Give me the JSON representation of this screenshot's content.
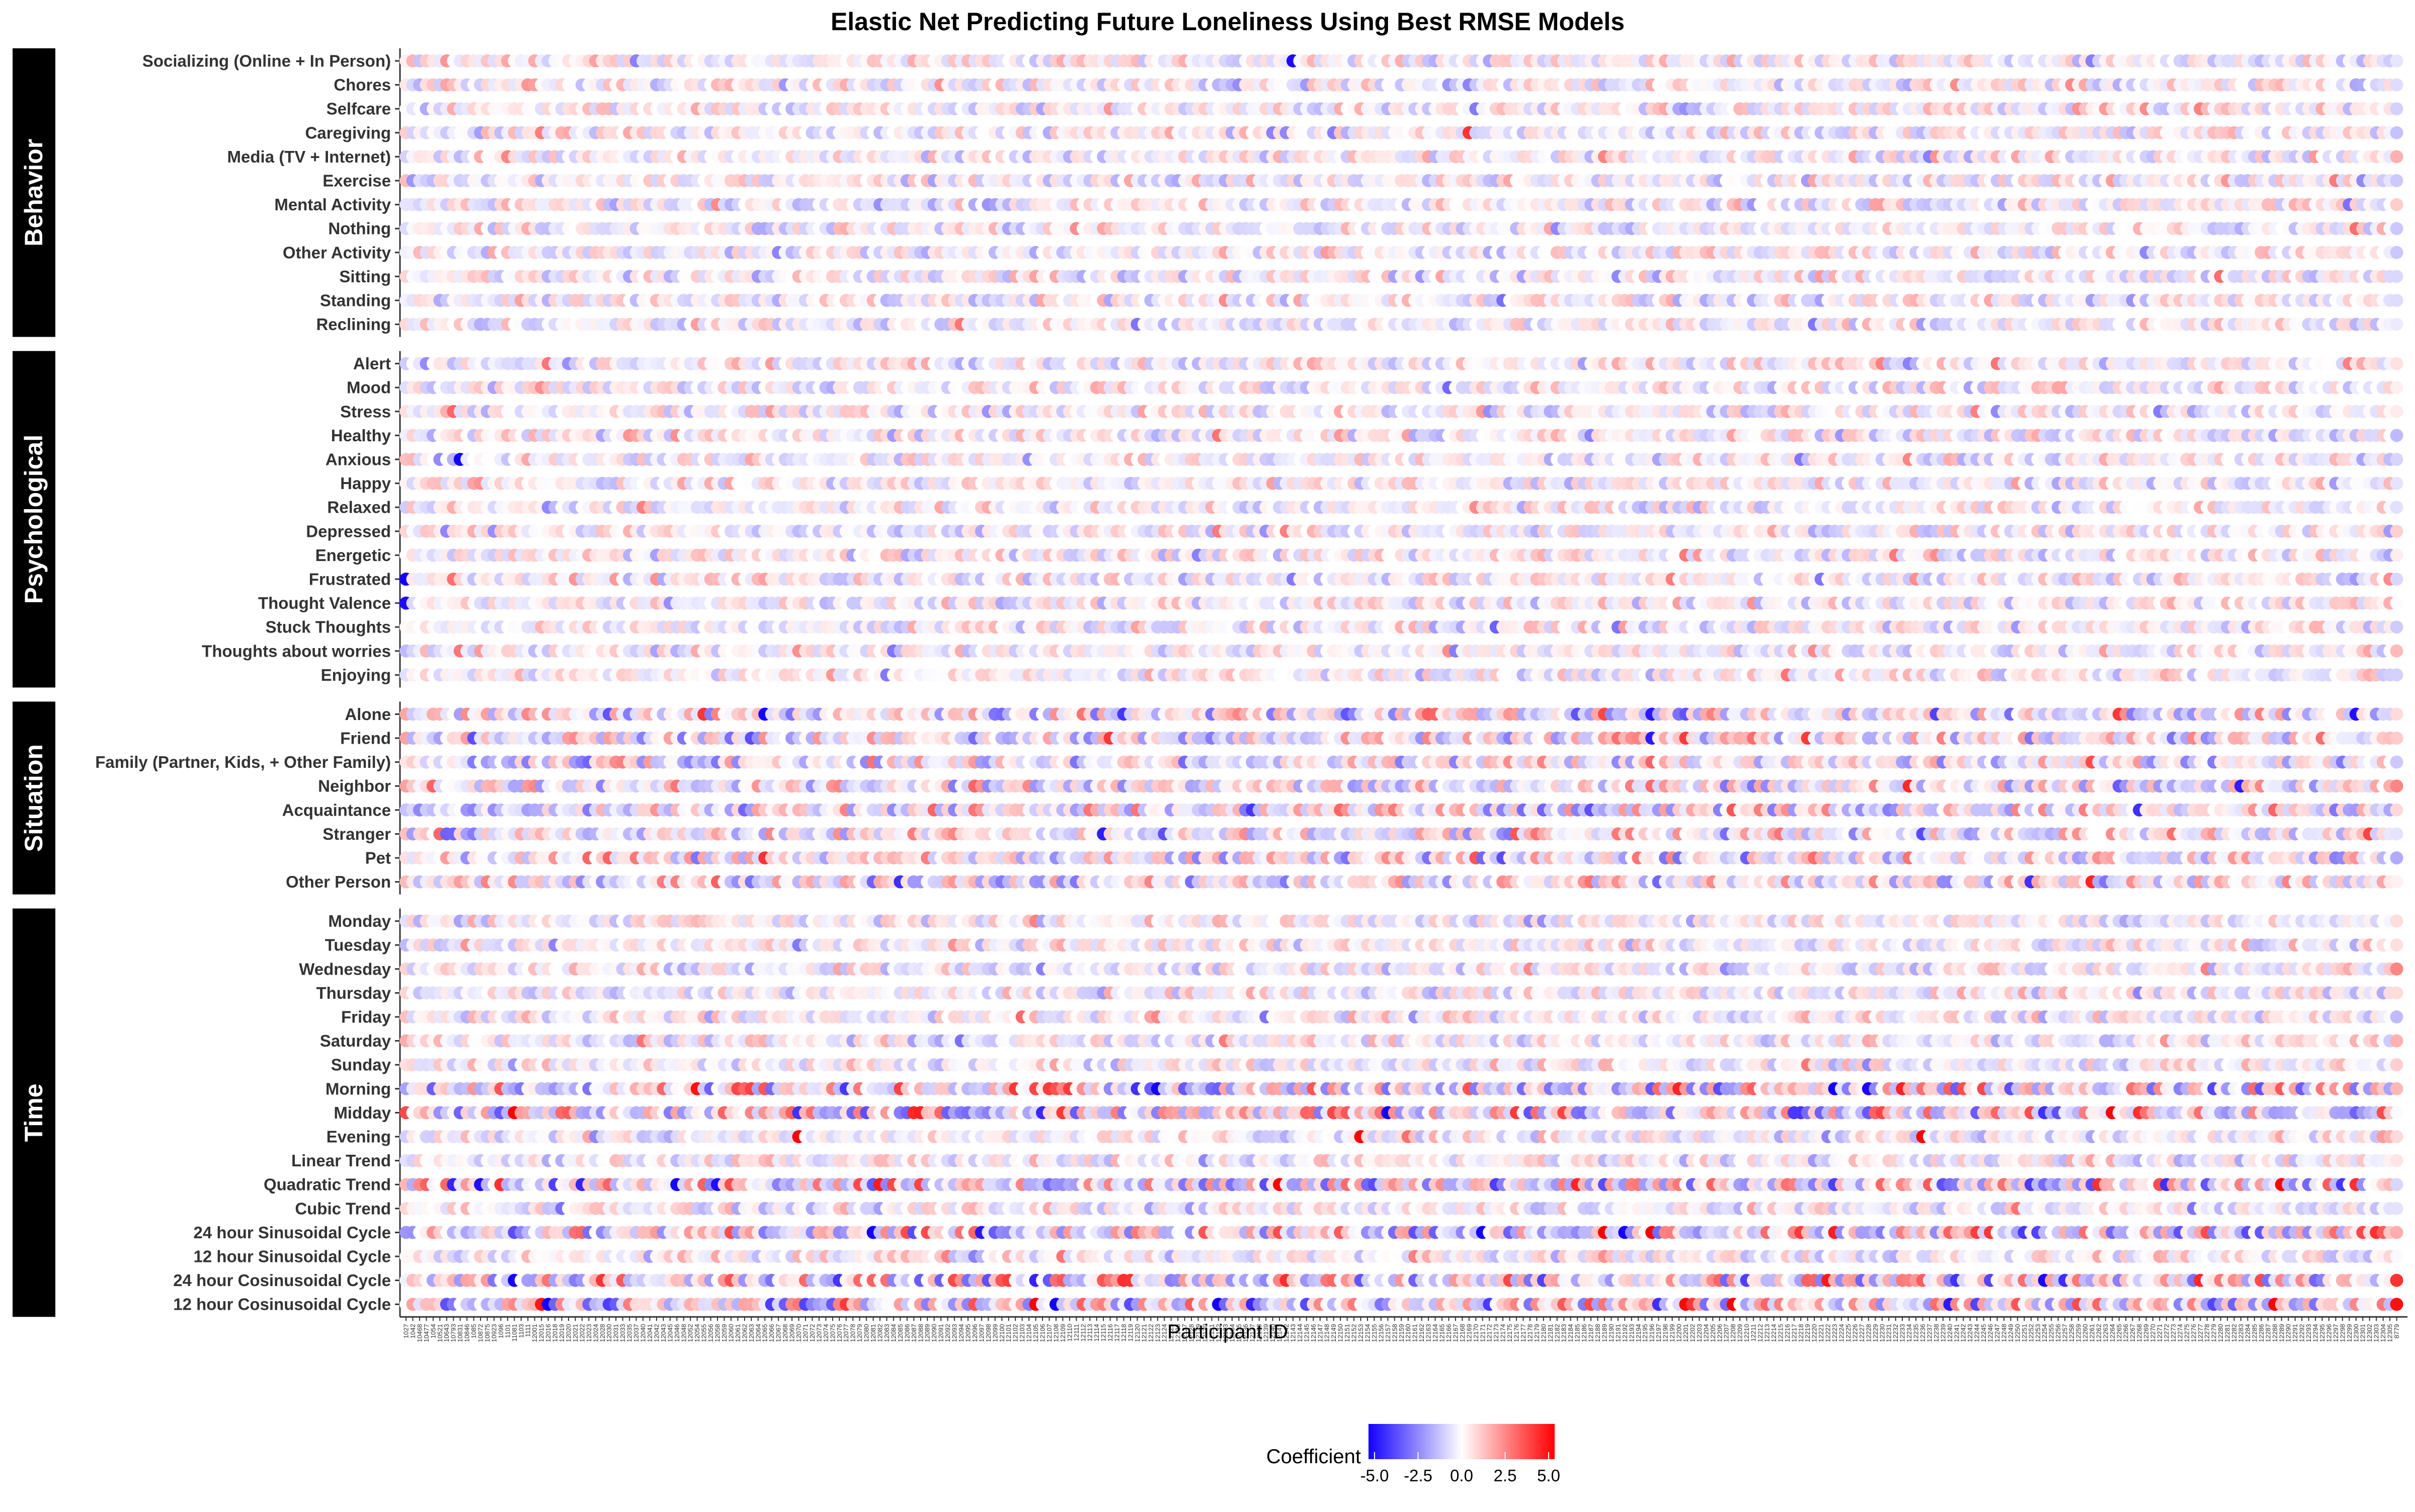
{
  "chart_data": {
    "type": "heatmap",
    "title": "Elastic Net Predicting Future Loneliness Using Best RMSE Models",
    "xlabel": "Participant ID",
    "ylabel": "",
    "panels": [
      {
        "name": "Behavior",
        "rows": [
          "Socializing (Online + In Person)",
          "Chores",
          "Selfcare",
          "Caregiving",
          "Media (TV + Internet)",
          "Exercise",
          "Mental Activity",
          "Nothing",
          "Other Activity",
          "Sitting",
          "Standing",
          "Reclining"
        ]
      },
      {
        "name": "Psychological",
        "rows": [
          "Alert",
          "Mood",
          "Stress",
          "Healthy",
          "Anxious",
          "Happy",
          "Relaxed",
          "Depressed",
          "Energetic",
          "Frustrated",
          "Thought Valence",
          "Stuck Thoughts",
          "Thoughts about worries",
          "Enjoying"
        ]
      },
      {
        "name": "Situation",
        "rows": [
          "Alone",
          "Friend",
          "Family (Partner, Kids, + Other Family)",
          "Neighbor",
          "Acquaintance",
          "Stranger",
          "Pet",
          "Other Person"
        ]
      },
      {
        "name": "Time",
        "rows": [
          "Monday",
          "Tuesday",
          "Wednesday",
          "Thursday",
          "Friday",
          "Saturday",
          "Sunday",
          "Morning",
          "Midday",
          "Evening",
          "Linear Trend",
          "Quadratic Trend",
          "Cubic Trend",
          "24 hour Sinusoidal Cycle",
          "12 hour Sinusoidal Cycle",
          "24 hour Cosinusoidal Cycle",
          "12 hour Cosinusoidal Cycle"
        ]
      }
    ],
    "participants": [
      "1027",
      "1042",
      "10468",
      "10477",
      "1054",
      "10521",
      "10643",
      "10793",
      "10831",
      "10846",
      "1085",
      "10872",
      "10875",
      "10923",
      "1096",
      "1101",
      "11081",
      "1103",
      "1111",
      "12001",
      "12015",
      "12016",
      "12018",
      "12019",
      "12020",
      "12021",
      "12022",
      "12023",
      "12024",
      "12028",
      "12030",
      "12031",
      "12033",
      "12035",
      "12037",
      "12040",
      "12041",
      "12042",
      "12043",
      "12045",
      "12046",
      "12048",
      "12052",
      "12054",
      "12055",
      "12056",
      "12058",
      "12059",
      "12060",
      "12061",
      "12062",
      "12063",
      "12064",
      "12065",
      "12066",
      "12067",
      "12068",
      "12069",
      "12070",
      "12071",
      "12072",
      "12073",
      "12074",
      "12075",
      "12076",
      "12077",
      "12078",
      "12079",
      "12080",
      "12081",
      "12082",
      "12083",
      "12084",
      "12085",
      "12086",
      "12087",
      "12088",
      "12089",
      "12090",
      "12091",
      "12092",
      "12093",
      "12094",
      "12095",
      "12096",
      "12097",
      "12098",
      "12099",
      "12100",
      "12101",
      "12102",
      "12103",
      "12104",
      "12105",
      "12106",
      "12107",
      "12108",
      "12109",
      "12110",
      "12111",
      "12112",
      "12113",
      "12114",
      "12115",
      "12116",
      "12117",
      "12118",
      "12119",
      "12120",
      "12121",
      "12122",
      "12123",
      "12124",
      "12125",
      "12126",
      "12127",
      "12128",
      "12129",
      "12130",
      "12131",
      "12132",
      "12133",
      "12134",
      "12135",
      "12136",
      "12137",
      "12138",
      "12139",
      "12140",
      "12141",
      "12142",
      "12143",
      "12144",
      "12145",
      "12146",
      "12147",
      "12148",
      "12149",
      "12150",
      "12151",
      "12152",
      "12153",
      "12154",
      "12155",
      "12156",
      "12157",
      "12158",
      "12159",
      "12160",
      "12161",
      "12162",
      "12163",
      "12164",
      "12165",
      "12166",
      "12167",
      "12168",
      "12169",
      "12170",
      "12171",
      "12172",
      "12173",
      "12174",
      "12175",
      "12176",
      "12177",
      "12178",
      "12179",
      "12180",
      "12181",
      "12182",
      "12183",
      "12184",
      "12185",
      "12186",
      "12187",
      "12188",
      "12189",
      "12190",
      "12191",
      "12192",
      "12193",
      "12194",
      "12195",
      "12196",
      "12197",
      "12198",
      "12199",
      "12200",
      "12201",
      "12202",
      "12203",
      "12204",
      "12205",
      "12206",
      "12207",
      "12208",
      "12209",
      "12210",
      "12211",
      "12212",
      "12213",
      "12214",
      "12215",
      "12216",
      "12217",
      "12218",
      "12219",
      "12220",
      "12221",
      "12222",
      "12223",
      "12224",
      "12225",
      "12226",
      "12227",
      "12228",
      "12229",
      "12230",
      "12231",
      "12232",
      "12233",
      "12234",
      "12235",
      "12236",
      "12237",
      "12238",
      "12239",
      "12240",
      "12241",
      "12242",
      "12243",
      "12244",
      "12245",
      "12246",
      "12247",
      "12248",
      "12249",
      "12250",
      "12251",
      "12252",
      "12253",
      "12254",
      "12255",
      "12256",
      "12257",
      "12258",
      "12259",
      "12260",
      "12261",
      "12262",
      "12263",
      "12264",
      "12265",
      "12266",
      "12267",
      "12268",
      "12269",
      "12270",
      "12271",
      "12272",
      "12273",
      "12274",
      "12275",
      "12276",
      "12277",
      "12278",
      "12279",
      "12280",
      "12281",
      "12282",
      "12283",
      "12284",
      "12285",
      "12286",
      "12287",
      "12288",
      "12289",
      "12290",
      "12291",
      "12292",
      "12293",
      "12294",
      "12295",
      "12296",
      "12297",
      "12298",
      "12299",
      "12300",
      "12301",
      "12302",
      "12303",
      "12304",
      "12305",
      "8779"
    ],
    "highlights": [
      {
        "row": "Frustrated",
        "participant": "1027",
        "value": -5.0
      },
      {
        "row": "Thought Valence",
        "participant": "1027",
        "value": -4.8
      },
      {
        "row": "Anxious",
        "participant": "10831",
        "value": -5.0
      },
      {
        "row": "Stress",
        "participant": "10793",
        "value": 3.0
      },
      {
        "row": "Frustrated",
        "participant": "10793",
        "value": 2.8
      },
      {
        "row": "Caregiving",
        "participant": "12169",
        "value": 4.0
      },
      {
        "row": "Socializing (Online + In Person)",
        "participant": "12143",
        "value": -4.8
      },
      {
        "row": "Alone",
        "participant": "12065",
        "value": -5.0
      },
      {
        "row": "Pet",
        "participant": "12065",
        "value": 4.0
      },
      {
        "row": "Alone",
        "participant": "12196",
        "value": -4.5
      },
      {
        "row": "Friend",
        "participant": "12196",
        "value": -4.5
      },
      {
        "row": "Family (Partner, Kids, + Other Family)",
        "participant": "12261",
        "value": 3.5
      },
      {
        "row": "Evening",
        "participant": "12029",
        "value": 5.0
      },
      {
        "row": "Evening",
        "participant": "12070",
        "value": 5.0
      },
      {
        "row": "Evening",
        "participant": "12153",
        "value": 5.0
      },
      {
        "row": "Evening",
        "participant": "12236",
        "value": 5.0
      },
      {
        "row": "Morning",
        "participant": "12123",
        "value": -5.0
      },
      {
        "row": "Midday",
        "participant": "11081",
        "value": 5.0
      },
      {
        "row": "24 hour Sinusoidal Cycle",
        "participant": "12196",
        "value": 5.0
      }
    ],
    "legend": {
      "title": "Coefficient",
      "ticks": [
        "-5.0",
        "-2.5",
        "0.0",
        "2.5",
        "5.0"
      ],
      "range": [
        -5,
        5
      ],
      "colors": {
        "low": "#1400ff",
        "mid": "#ffffff",
        "high": "#ff0000"
      },
      "position": "bottom"
    },
    "grid": false
  }
}
